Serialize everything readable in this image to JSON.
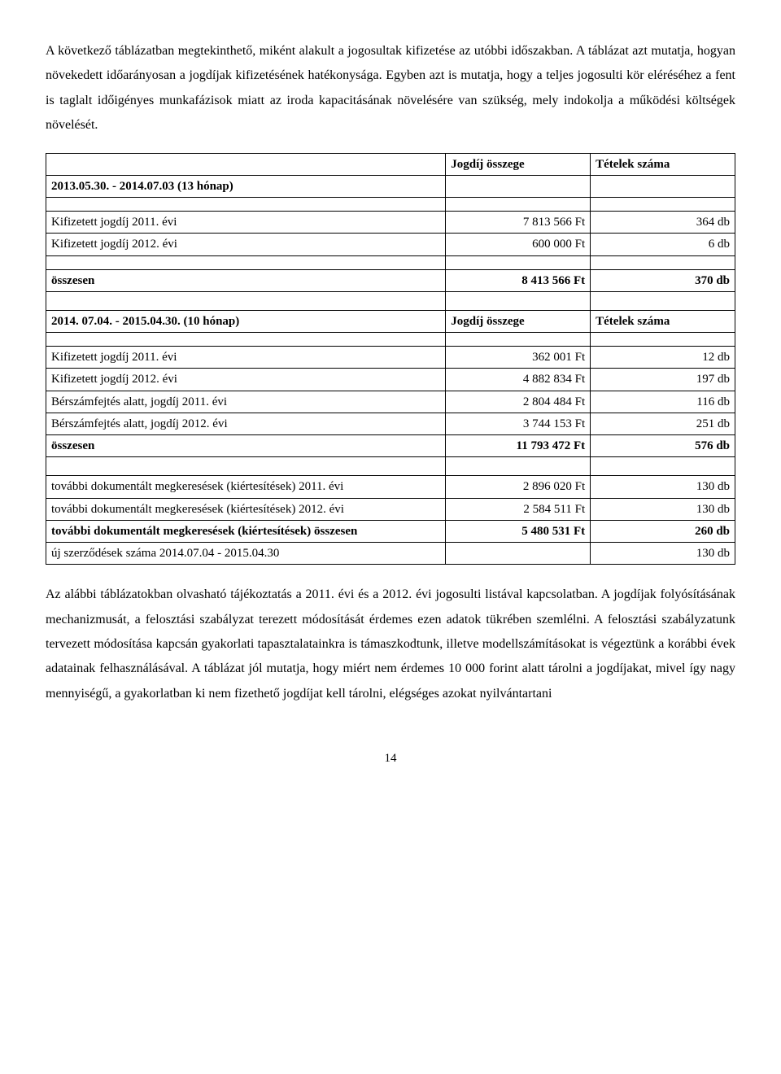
{
  "para1": "A következő táblázatban megtekinthető, miként alakult a jogosultak kifizetése az utóbbi időszakban. A táblázat azt mutatja, hogyan növekedett időarányosan a jogdíjak kifizetésének hatékonysága. Egyben azt is mutatja, hogy a teljes jogosulti kör eléréséhez a fent is taglalt időigényes munkafázisok miatt az iroda kapacitásának növelésére van szükség, mely indokolja a működési költségek növelését.",
  "para2": "Az alábbi táblázatokban olvasható tájékoztatás a 2011. évi és a 2012. évi jogosulti listával kapcsolatban. A jogdíjak folyósításának mechanizmusát, a felosztási szabályzat terezett módosítását érdemes ezen adatok tükrében szemlélni. A felosztási szabályzatunk tervezett módosítása kapcsán gyakorlati tapasztalatainkra is támaszkodtunk, illetve modellszámításokat is végeztünk a korábbi évek adatainak felhasználásával. A táblázat jól mutatja, hogy miért nem érdemes 10 000 forint alatt tárolni a jogdíjakat, mivel így nagy mennyiségű, a gyakorlatban ki nem fizethető jogdíjat kell tárolni, elégséges azokat nyilvántartani",
  "pageNumber": "14",
  "header1": {
    "col2": "Jogdíj összege",
    "col3": "Tételek száma"
  },
  "period1": "2013.05.30. - 2014.07.03 (13 hónap)",
  "row1": {
    "label": "Kifizetett jogdíj 2011. évi",
    "amount": "7 813 566 Ft",
    "count": "364 db"
  },
  "row2": {
    "label": "Kifizetett jogdíj 2012. évi",
    "amount": "600 000 Ft",
    "count": "6 db"
  },
  "sum1": {
    "label": "összesen",
    "amount": "8 413 566 Ft",
    "count": "370 db"
  },
  "period2": {
    "label": "2014. 07.04. - 2015.04.30. (10 hónap)",
    "col2": "Jogdíj összege",
    "col3": "Tételek száma"
  },
  "row3": {
    "label": "Kifizetett jogdíj 2011. évi",
    "amount": "362 001 Ft",
    "count": "12 db"
  },
  "row4": {
    "label": "Kifizetett jogdíj 2012. évi",
    "amount": "4 882 834 Ft",
    "count": "197 db"
  },
  "row5": {
    "label": "Bérszámfejtés alatt, jogdíj 2011. évi",
    "amount": "2 804 484 Ft",
    "count": "116 db"
  },
  "row6": {
    "label": "Bérszámfejtés alatt, jogdíj 2012. évi",
    "amount": "3 744 153 Ft",
    "count": "251 db"
  },
  "sum2": {
    "label": "összesen",
    "amount": "11 793 472 Ft",
    "count": "576 db"
  },
  "row7": {
    "label": "további dokumentált megkeresések (kiértesítések) 2011. évi",
    "amount": "2 896 020 Ft",
    "count": "130 db"
  },
  "row8": {
    "label": "további dokumentált megkeresések (kiértesítések) 2012. évi",
    "amount": "2 584 511 Ft",
    "count": "130 db"
  },
  "row9": {
    "label": "további dokumentált megkeresések (kiértesítések) összesen",
    "amount": "5 480 531 Ft",
    "count": "260 db"
  },
  "row10": {
    "label": "új szerződések száma 2014.07.04 - 2015.04.30",
    "amount": "",
    "count": "130 db"
  }
}
